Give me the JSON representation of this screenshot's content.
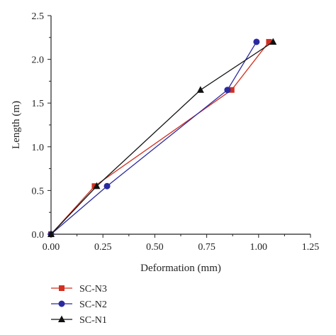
{
  "chart_data": {
    "type": "line",
    "xlabel": "Deformation (mm)",
    "ylabel": "Length (m)",
    "xlim": [
      0.0,
      1.25
    ],
    "ylim": [
      0.0,
      2.5
    ],
    "xticks": [
      0.0,
      0.25,
      0.5,
      0.75,
      1.0,
      1.25
    ],
    "xtick_labels": [
      "0.00",
      "0.25",
      "0.50",
      "0.75",
      "1.00",
      "1.25"
    ],
    "yticks": [
      0.0,
      0.5,
      1.0,
      1.5,
      2.0,
      2.5
    ],
    "ytick_labels": [
      "0.0",
      "0.5",
      "1.0",
      "1.5",
      "2.0",
      "2.5"
    ],
    "grid": false,
    "legend_position": "bottom-left",
    "series": [
      {
        "name": "SC-N3",
        "color": "#d03020",
        "marker": "square",
        "points": [
          [
            0.0,
            0.0
          ],
          [
            0.21,
            0.55
          ],
          [
            0.87,
            1.65
          ],
          [
            1.05,
            2.2
          ]
        ]
      },
      {
        "name": "SC-N2",
        "color": "#2a2aa0",
        "marker": "circle",
        "points": [
          [
            0.0,
            0.0
          ],
          [
            0.27,
            0.55
          ],
          [
            0.85,
            1.65
          ],
          [
            0.99,
            2.2
          ]
        ]
      },
      {
        "name": "SC-N1",
        "color": "#111111",
        "marker": "triangle",
        "points": [
          [
            0.0,
            0.0
          ],
          [
            0.22,
            0.55
          ],
          [
            0.72,
            1.65
          ],
          [
            1.07,
            2.2
          ]
        ]
      }
    ]
  }
}
